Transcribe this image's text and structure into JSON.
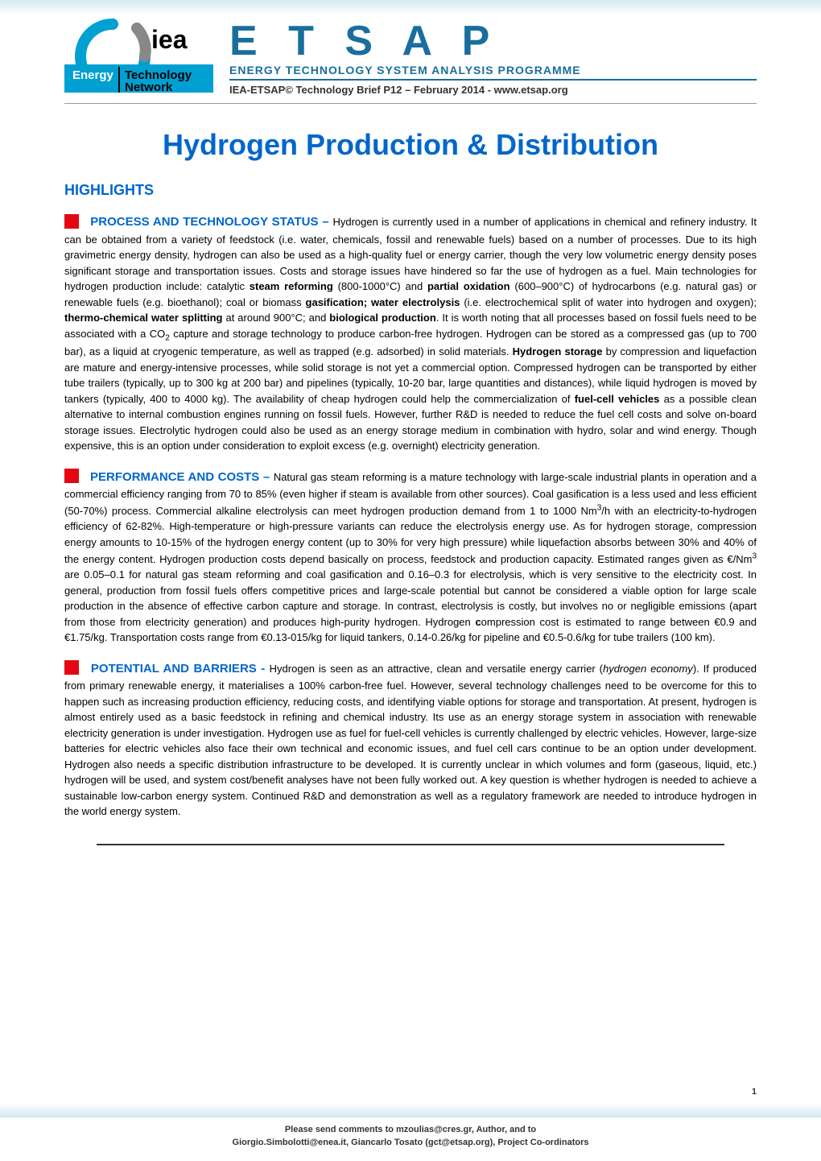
{
  "header": {
    "logo": {
      "org_name_1": "Energy",
      "org_name_2": "Technology",
      "org_name_3": "Network",
      "iea_text": "iea",
      "colors": {
        "blue": "#00a0d2",
        "darkblue": "#1a6e9e",
        "black": "#000000"
      }
    },
    "etsap_title": "E T S A P",
    "programme_name": "ENERGY TECHNOLOGY SYSTEM ANALYSIS PROGRAMME",
    "brief_prefix": "IEA-ETSAP© Technology Brief P12 – February 2014 - ",
    "brief_url": "www.etsap.org"
  },
  "title": "Hydrogen Production & Distribution",
  "highlights_label": "HIGHLIGHTS",
  "sections": {
    "process": {
      "lead": "PROCESS AND TECHNOLOGY STATUS – ",
      "body_html": "Hydrogen is currently used in a number of applications in chemical and refinery industry. It can be obtained from a variety of feedstock (i.e. water, chemicals, fossil and renewable fuels) based on a number of processes. Due to its high gravimetric energy density, hydrogen can also be used as a high-quality fuel or energy carrier, though the very low volumetric energy density poses significant storage and transportation issues. Costs and storage issues have hindered so far the use of hydrogen as a fuel. Main technologies for hydrogen production include: catalytic <b>steam reforming</b> (800-1000°C) and <b>partial oxidation</b> (600–900°C) of hydrocarbons (e.g. natural gas) or renewable fuels (e.g. bioethanol); coal or biomass <b>gasification; water electrolysis</b> (i.e. electrochemical split of water into hydrogen and oxygen); <b>thermo-chemical water splitting</b> at around 900°C; and <b>biological production</b>. It is worth noting that all processes based on fossil fuels need to be associated with a CO<span class=\"sub\">2</span> capture and storage technology to produce carbon-free hydrogen. Hydrogen can be stored as a compressed gas (up to 700 bar), as a liquid at cryogenic temperature, as well as trapped (e.g. adsorbed) in solid materials. <b>Hydrogen storage</b> by compression and liquefaction are mature and energy-intensive processes, while solid storage is not yet a commercial option. Compressed hydrogen can be transported by either tube trailers (typically, up to 300 kg at 200 bar) and pipelines (typically, 10-20 bar, large quantities and distances), while liquid hydrogen is moved by tankers (typically, 400 to 4000 kg). The availability of cheap hydrogen could help the commercialization of <b>fuel-cell vehicles</b> as a possible clean alternative to internal combustion engines running on fossil fuels. However, further R&D is needed to reduce the fuel cell costs and solve on-board storage issues. Electrolytic hydrogen could also be used as an energy storage medium in combination with hydro, solar and wind energy. Though expensive, this is an option under consideration to exploit excess (e.g. overnight) electricity generation."
    },
    "performance": {
      "lead": "PERFORMANCE AND COSTS – ",
      "body_html": "Natural gas steam reforming is a mature technology with large-scale industrial plants in operation and a commercial efficiency ranging from 70 to 85% (even higher if steam is available from other sources). Coal gasification is a less used and less efficient (50-70%) process. Commercial alkaline electrolysis can meet hydrogen production demand from 1 to 1000 Nm<span class=\"sup\">3</span>/h with an electricity-to-hydrogen efficiency of 62-82%. High-temperature or high-pressure variants can reduce the electrolysis energy use. As for hydrogen storage, compression energy amounts to 10-15% of the hydrogen energy content (up to 30% for very high pressure) while liquefaction absorbs between 30% and 40% of the energy content. Hydrogen production costs depend basically on process, feedstock and production capacity. Estimated ranges given as €/Nm<span class=\"sup\">3</span> are 0.05–0.1 for natural gas steam reforming and coal gasification and 0.16–0.3 for electrolysis, which is very sensitive to the electricity cost. In general, production from fossil fuels offers competitive prices and large-scale potential but cannot be considered a viable option for large scale production in the absence of effective carbon capture and storage. In contrast, electrolysis is costly, but involves no or negligible emissions (apart from those from electricity generation) and produces high-purity hydrogen. Hydrogen <b>c</b>ompression cost is estimated to range between €0.9 and €1.75/kg. Transportation costs range from €0.13-015/kg for liquid tankers, 0.14-0.26/kg for pipeline and €0.5-0.6/kg for tube trailers (100 km)."
    },
    "potential": {
      "lead": "POTENTIAL AND BARRIERS - ",
      "body_html": "Hydrogen is seen as an attractive, clean and versatile energy carrier (<i>hydrogen economy</i>). If produced from primary renewable energy, it materialises a 100% carbon-free fuel. However, several technology challenges need to be overcome for this to happen such as increasing production efficiency, reducing costs, and identifying viable options for storage and transportation. At present, hydrogen is almost entirely used as a basic feedstock in refining and chemical industry. Its use as an energy storage system in association with renewable electricity generation is under investigation. Hydrogen use as fuel for fuel-cell vehicles is currently challenged by electric vehicles. However, large-size batteries for electric vehicles also face their own technical and economic issues, and fuel cell cars continue to be an option under development. Hydrogen also needs a specific distribution infrastructure to be developed. It is currently unclear in which volumes and form (gaseous, liquid, etc.) hydrogen will be used, and system cost/benefit analyses have not been fully worked out. A key question is whether hydrogen is needed to achieve a sustainable low-carbon energy system. Continued R&D and demonstration as well as a regulatory framework are needed to introduce hydrogen in the world energy system."
    }
  },
  "footer": {
    "line1": "Please send comments to mzoulias@cres.gr, Author, and to",
    "line2": "Giorgio.Simbolotti@enea.it, Giancarlo Tosato (gct@etsap.org), Project Co-ordinators"
  },
  "page_number": "1",
  "colors": {
    "title_blue": "#0066cc",
    "header_blue": "#1a6e9e",
    "red_square": "#e30613",
    "body_text": "#000000",
    "gradient_light": "#d4e8f0",
    "background": "#ffffff"
  },
  "typography": {
    "title_size": 36,
    "section_lead_size": 15,
    "body_size": 13,
    "etsap_size": 52
  }
}
